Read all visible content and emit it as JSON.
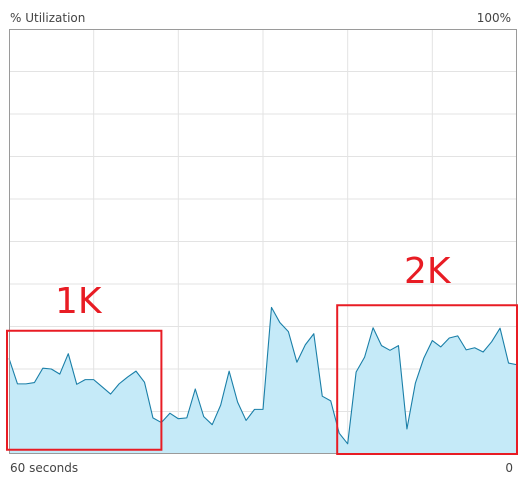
{
  "header": {
    "y_axis_label": "% Utilization",
    "y_max_label": "100%"
  },
  "footer": {
    "x_left_label": "60 seconds",
    "x_right_label": "0"
  },
  "colors": {
    "line": "#1a7fa8",
    "fill": "#c5eaf8",
    "grid": "#e3e3e3",
    "border": "#9a9a9a",
    "annotation": "#e81c24"
  },
  "chart_data": {
    "type": "area",
    "title": "",
    "xlabel": "60 seconds",
    "ylabel": "% Utilization",
    "xlim": [
      60,
      0
    ],
    "ylim": [
      0,
      100
    ],
    "grid": true,
    "x": [
      60,
      59,
      58,
      57,
      56,
      55,
      54,
      53,
      52,
      51,
      50,
      49,
      48,
      47,
      46,
      45,
      44,
      43,
      42,
      41,
      40,
      39,
      38,
      37,
      36,
      35,
      34,
      33,
      32,
      31,
      30,
      29,
      28,
      27,
      26,
      25,
      24,
      23,
      22,
      21,
      20,
      19,
      18,
      17,
      16,
      15,
      14,
      13,
      12,
      11,
      10,
      9,
      8,
      7,
      6,
      5,
      4,
      3,
      2,
      1,
      0
    ],
    "values": [
      22.5,
      16.5,
      16.5,
      16.8,
      20.2,
      20.0,
      18.8,
      23.6,
      16.4,
      17.5,
      17.5,
      15.8,
      14.1,
      16.5,
      18.1,
      19.5,
      16.9,
      8.5,
      7.4,
      9.6,
      8.3,
      8.5,
      15.3,
      8.8,
      6.9,
      11.5,
      19.5,
      12.2,
      7.9,
      10.5,
      10.5,
      34.5,
      30.9,
      28.8,
      21.6,
      25.7,
      28.3,
      13.6,
      12.5,
      4.9,
      2.4,
      19.3,
      22.8,
      29.7,
      25.5,
      24.4,
      25.5,
      5.9,
      16.7,
      22.6,
      26.7,
      25.2,
      27.3,
      27.8,
      24.5,
      25.0,
      24.0,
      26.4,
      29.6,
      21.4,
      21.0
    ],
    "annotations": [
      {
        "text": "1K",
        "x_range": [
          60,
          42
        ],
        "y_range": [
          1,
          29
        ]
      },
      {
        "text": "2K",
        "x_range": [
          21,
          0
        ],
        "y_range": [
          0,
          35
        ]
      }
    ]
  }
}
